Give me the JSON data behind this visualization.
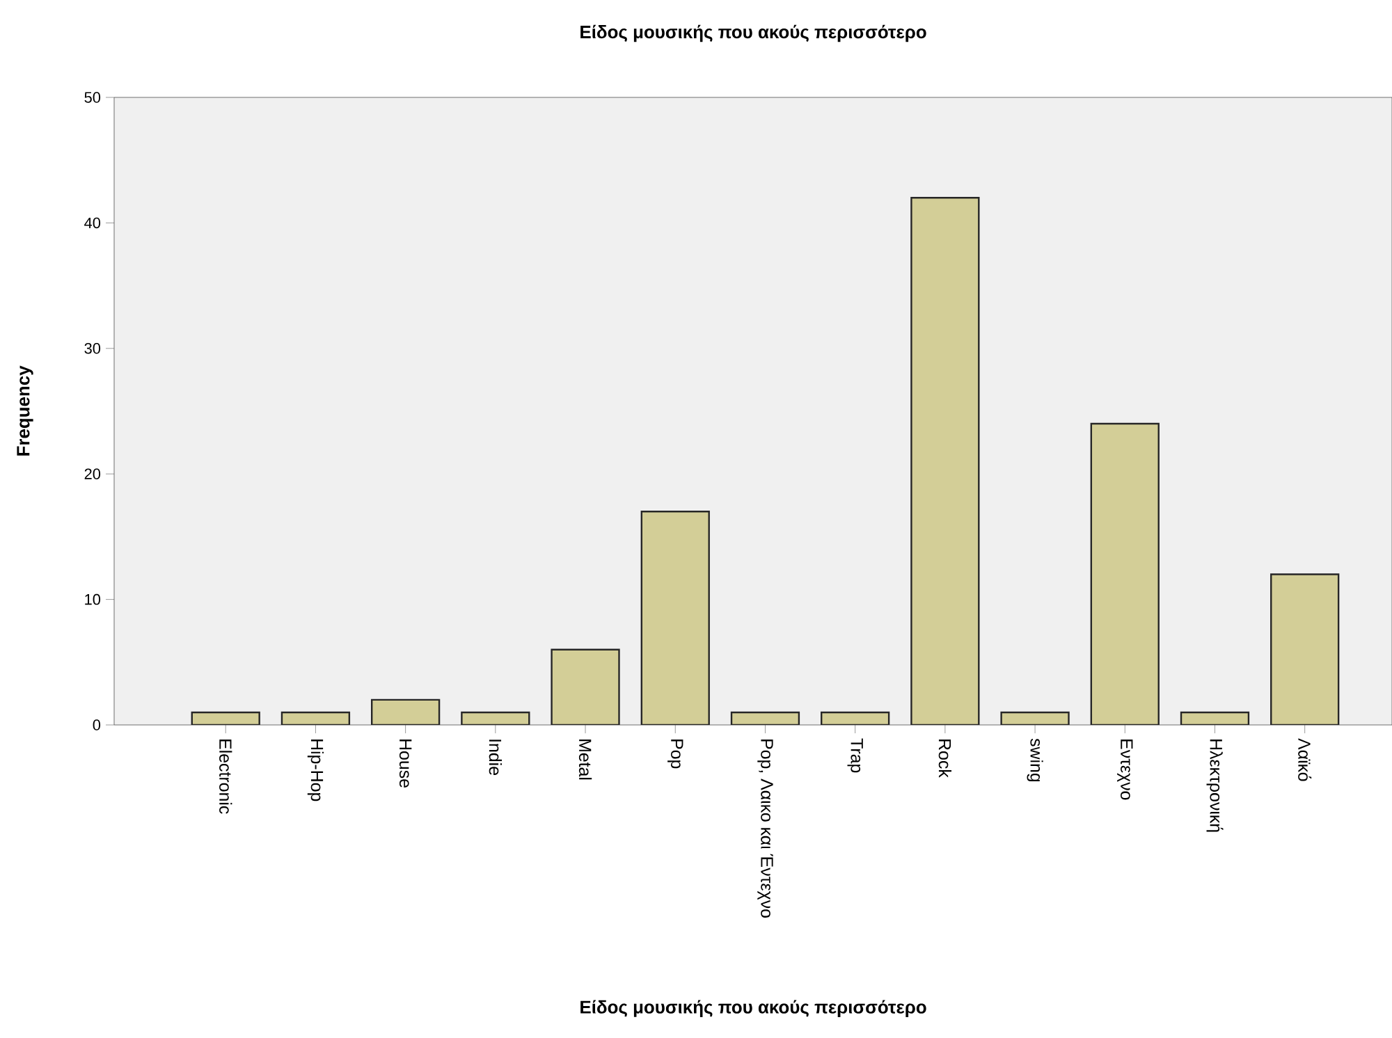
{
  "chart_data": {
    "type": "bar",
    "title": "Είδος μουσικής που ακούς περισσότερο",
    "xlabel": "Είδος μουσικής που ακούς περισσότερο",
    "ylabel": "Frequency",
    "categories": [
      "Electronic",
      "Hip-Hop",
      "House",
      "Indie",
      "Metal",
      "Pop",
      "Pop, Λαικο και Έντεχνο",
      "Trap",
      "Rock",
      "swing",
      "Εντεχνο",
      "Ηλεκτρονική",
      "Λαϊκό"
    ],
    "values": [
      1,
      1,
      2,
      1,
      6,
      17,
      1,
      1,
      42,
      1,
      24,
      1,
      12
    ],
    "color": "#d3ce97",
    "ylim": [
      0,
      50
    ],
    "yticks": [
      0,
      10,
      20,
      30,
      40,
      50
    ],
    "grid": false
  }
}
